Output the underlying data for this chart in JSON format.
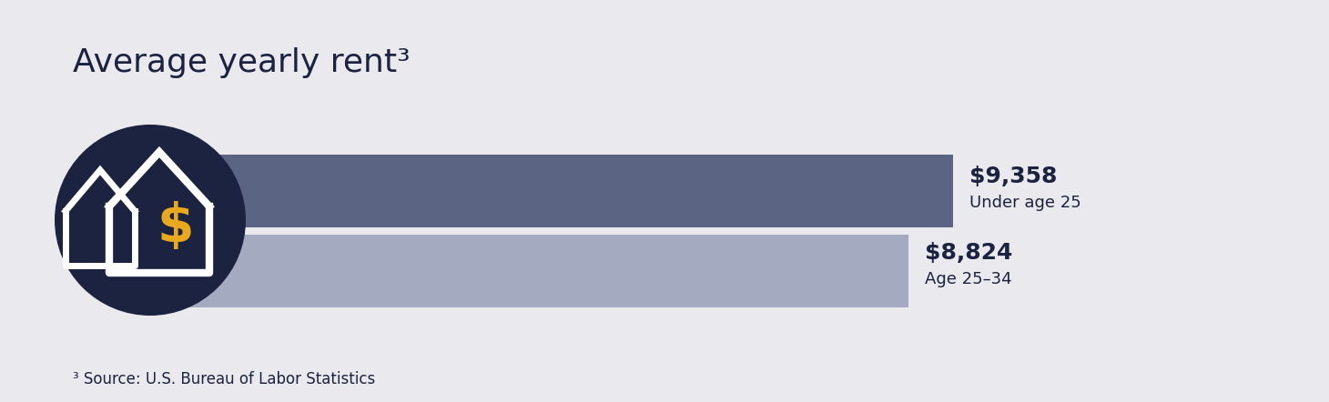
{
  "title": "Average yearly rent³",
  "title_fontsize": 26,
  "title_color": "#1c2340",
  "background_color": "#e9e9ee",
  "bar1_value": 9358,
  "bar2_value": 8824,
  "bar1_label_top": "$9,358",
  "bar1_label_bottom": "Under age 25",
  "bar2_label_top": "$8,824",
  "bar2_label_bottom": "Age 25–34",
  "bar1_color": "#5c6484",
  "bar2_color": "#a4aabf",
  "label_color": "#1c2340",
  "max_value": 10500,
  "circle_color": "#1c2340",
  "dollar_color": "#e8a820",
  "house_color": "#ffffff",
  "source_text": "³ Source: U.S. Bureau of Labor Statistics",
  "source_fontsize": 12,
  "source_color": "#1c2340",
  "bar1_value_fontsize": 18,
  "bar1_sub_fontsize": 13,
  "bar2_value_fontsize": 18,
  "bar2_sub_fontsize": 13
}
